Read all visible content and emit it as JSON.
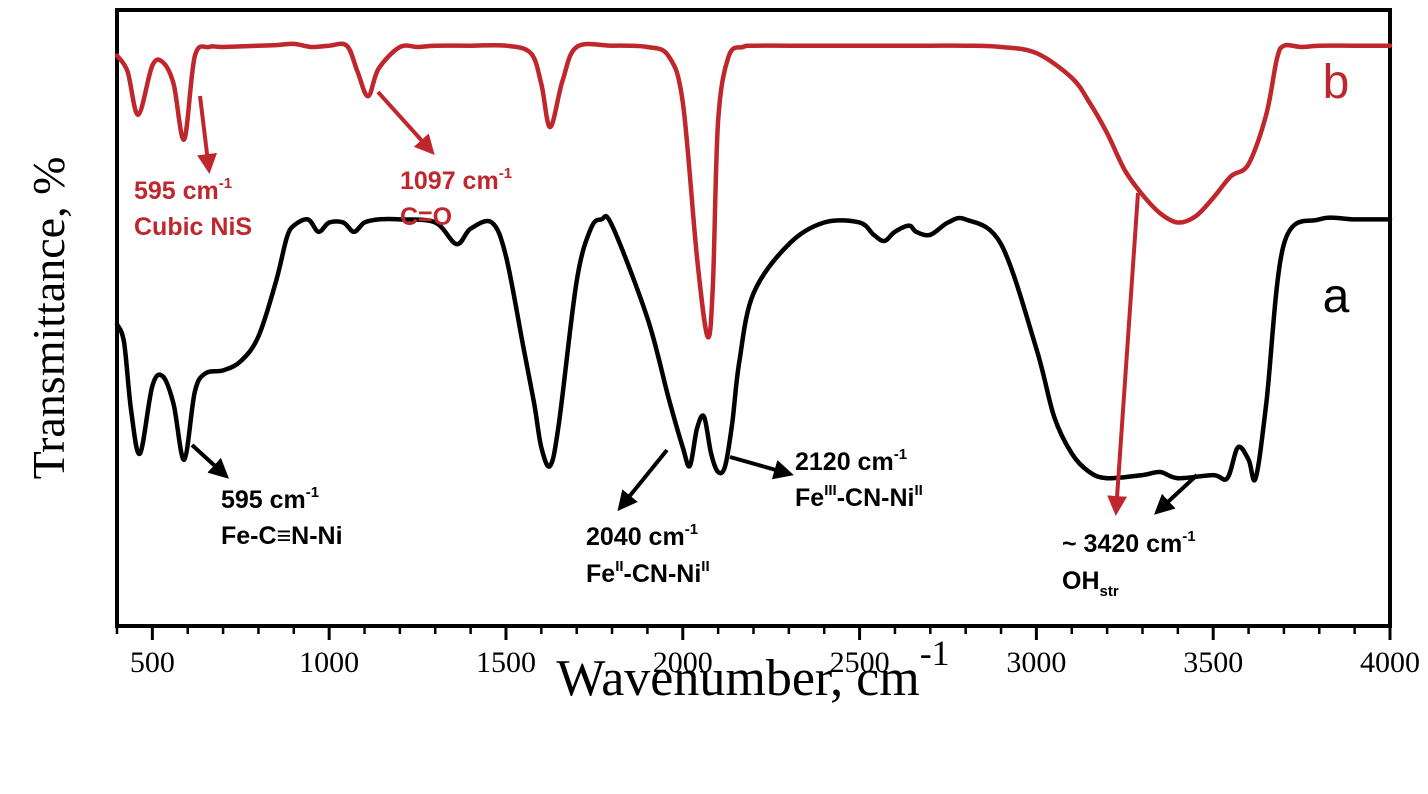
{
  "chart_data": {
    "type": "line",
    "xlabel": "Wavenumber, cm",
    "xlabel_sup": "-1",
    "ylabel": "Transmittance, %",
    "xlim": [
      400,
      4000
    ],
    "ylim": [
      0,
      1
    ],
    "x_ticks": [
      500,
      1000,
      1500,
      2000,
      2500,
      3000,
      3500,
      4000
    ],
    "x_tick_labels": [
      "500",
      "1000",
      "1500",
      "2000",
      "2500",
      "3000",
      "3500",
      "4000"
    ],
    "x_minor_step": 100,
    "grid": false,
    "legend": "none",
    "series": [
      {
        "name": "b",
        "color": "#c0272d",
        "x": [
          400,
          430,
          460,
          500,
          530,
          560,
          590,
          620,
          660,
          700,
          800,
          850,
          900,
          950,
          1000,
          1050,
          1080,
          1110,
          1140,
          1200,
          1250,
          1300,
          1400,
          1500,
          1570,
          1600,
          1625,
          1660,
          1700,
          1800,
          1900,
          1960,
          2000,
          2040,
          2070,
          2085,
          2100,
          2130,
          2170,
          2200,
          2300,
          2400,
          2500,
          2600,
          2700,
          2800,
          2900,
          3000,
          3100,
          3150,
          3200,
          3250,
          3300,
          3350,
          3400,
          3450,
          3500,
          3550,
          3600,
          3650,
          3680,
          3700,
          3750,
          3800,
          3900,
          4000
        ],
        "y": [
          0.926,
          0.9,
          0.83,
          0.91,
          0.915,
          0.88,
          0.79,
          0.925,
          0.94,
          0.94,
          0.942,
          0.943,
          0.945,
          0.94,
          0.942,
          0.942,
          0.9,
          0.86,
          0.905,
          0.94,
          0.94,
          0.942,
          0.942,
          0.942,
          0.93,
          0.88,
          0.81,
          0.885,
          0.94,
          0.942,
          0.94,
          0.925,
          0.85,
          0.6,
          0.47,
          0.55,
          0.82,
          0.925,
          0.94,
          0.942,
          0.942,
          0.942,
          0.942,
          0.942,
          0.942,
          0.942,
          0.94,
          0.93,
          0.89,
          0.85,
          0.8,
          0.74,
          0.7,
          0.67,
          0.655,
          0.665,
          0.695,
          0.73,
          0.75,
          0.83,
          0.92,
          0.942,
          0.94,
          0.942,
          0.942,
          0.942
        ]
      },
      {
        "name": "a",
        "color": "#000000",
        "x": [
          400,
          420,
          440,
          465,
          500,
          530,
          560,
          590,
          620,
          650,
          700,
          750,
          800,
          850,
          880,
          900,
          940,
          970,
          1000,
          1040,
          1070,
          1100,
          1140,
          1200,
          1300,
          1360,
          1400,
          1460,
          1500,
          1550,
          1580,
          1600,
          1625,
          1650,
          1700,
          1740,
          1770,
          1800,
          1900,
          1960,
          2000,
          2020,
          2040,
          2060,
          2080,
          2100,
          2120,
          2140,
          2160,
          2200,
          2300,
          2400,
          2500,
          2540,
          2570,
          2600,
          2640,
          2660,
          2700,
          2750,
          2800,
          2900,
          3000,
          3050,
          3100,
          3150,
          3200,
          3300,
          3350,
          3400,
          3500,
          3540,
          3570,
          3600,
          3620,
          3650,
          3700,
          3800,
          3900,
          4000
        ],
        "y": [
          0.49,
          0.46,
          0.35,
          0.28,
          0.39,
          0.405,
          0.36,
          0.27,
          0.38,
          0.41,
          0.415,
          0.43,
          0.47,
          0.56,
          0.63,
          0.65,
          0.66,
          0.64,
          0.655,
          0.655,
          0.64,
          0.655,
          0.66,
          0.66,
          0.655,
          0.62,
          0.645,
          0.655,
          0.6,
          0.45,
          0.36,
          0.29,
          0.26,
          0.33,
          0.56,
          0.645,
          0.66,
          0.65,
          0.5,
          0.37,
          0.29,
          0.26,
          0.32,
          0.34,
          0.28,
          0.25,
          0.26,
          0.33,
          0.43,
          0.54,
          0.62,
          0.655,
          0.655,
          0.635,
          0.625,
          0.64,
          0.65,
          0.64,
          0.635,
          0.655,
          0.66,
          0.62,
          0.45,
          0.34,
          0.28,
          0.25,
          0.24,
          0.245,
          0.25,
          0.24,
          0.245,
          0.24,
          0.29,
          0.27,
          0.24,
          0.36,
          0.62,
          0.66,
          0.66,
          0.66
        ]
      }
    ],
    "annotations": [
      {
        "id": "ann-b-595",
        "color": "#c0272d",
        "lines": [
          {
            "t": "595 cm"
          },
          {
            "t": "Cubic NiS"
          }
        ],
        "sup": "-1"
      },
      {
        "id": "ann-b-1097",
        "color": "#c0272d",
        "lines": [
          {
            "t": "1097 cm"
          },
          {
            "t": "C=O"
          }
        ],
        "sup": "-1"
      },
      {
        "id": "ann-a-595",
        "color": "#000000",
        "lines": [
          {
            "t": "595 cm"
          },
          {
            "t": "Fe-C≡N-Ni"
          }
        ],
        "sup": "-1"
      },
      {
        "id": "ann-a-2040",
        "color": "#000000",
        "lines": [
          {
            "t": "2040 cm"
          },
          {
            "t": "Fe"
          }
        ],
        "sup": "-1"
      },
      {
        "id": "ann-a-2120",
        "color": "#000000",
        "lines": [
          {
            "t": "2120 cm"
          },
          {
            "t": "Fe"
          }
        ],
        "sup": "-1"
      },
      {
        "id": "ann-a-3420",
        "color": "#000000",
        "lines": [
          {
            "t": "~ 3420 cm"
          },
          {
            "t": "OH"
          }
        ],
        "sup": "-1"
      }
    ],
    "ann_texts": {
      "b595_l1": "595 cm",
      "b595_sup": "-1",
      "b595_l2": "Cubic NiS",
      "b1097_l1": "1097 cm",
      "b1097_sup": "-1",
      "b1097_l2": "C=O",
      "a595_l1": "595 cm",
      "a595_sup": "-1",
      "a595_l2": "Fe-C≡N-Ni",
      "a2040_l1": "2040 cm",
      "a2040_sup": "-1",
      "a2040_l2a": "Fe",
      "a2040_l2sup1": "II",
      "a2040_l2b": "-CN-Ni",
      "a2040_l2sup2": "II",
      "a2120_l1": "2120 cm",
      "a2120_sup": "-1",
      "a2120_l2a": "Fe",
      "a2120_l2sup1": "III",
      "a2120_l2b": "-CN-Ni",
      "a2120_l2sup2": "II",
      "a3420_l1": "~ 3420 cm",
      "a3420_sup": "-1",
      "a3420_l2": "OH",
      "a3420_sub": "str"
    }
  }
}
